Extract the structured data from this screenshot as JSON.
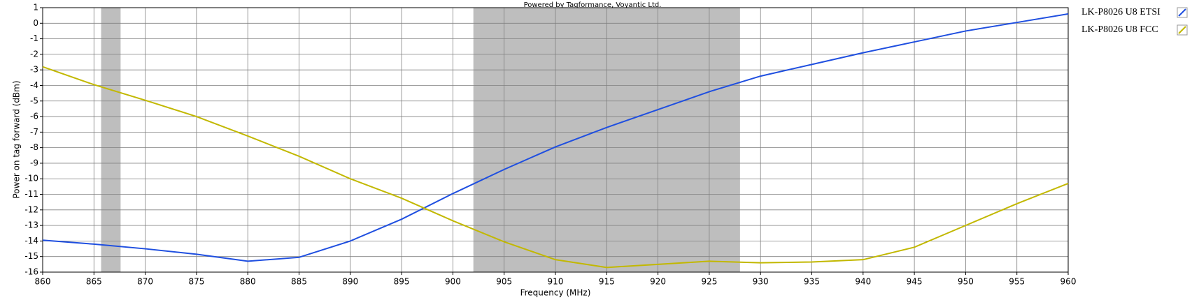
{
  "chart_data": {
    "type": "line",
    "title": "Powered by Tagformance, Voyantic Ltd.",
    "x_label": "Frequency (MHz)",
    "y_label": "Power on tag forward (dBm)",
    "x": [
      860,
      865,
      870,
      875,
      880,
      885,
      890,
      895,
      900,
      905,
      910,
      915,
      920,
      925,
      930,
      935,
      940,
      945,
      950,
      955,
      960
    ],
    "series": [
      {
        "name": "LK-P8026 U8 ETSI",
        "color": "#1f4fe0",
        "values": [
          -13.95,
          -14.2,
          -14.5,
          -14.85,
          -15.3,
          -15.05,
          -14,
          -12.6,
          -10.95,
          -9.4,
          -7.95,
          -6.7,
          -5.55,
          -4.4,
          -3.4,
          -2.65,
          -1.9,
          -1.2,
          -0.5,
          0.05,
          0.6
        ]
      },
      {
        "name": "LK-P8026 U8 FCC",
        "color": "#c2b800",
        "values": [
          -2.8,
          -3.95,
          -4.95,
          -6,
          -7.25,
          -8.55,
          -10,
          -11.25,
          -12.7,
          -14.05,
          -15.2,
          -15.7,
          -15.5,
          -15.3,
          -15.4,
          -15.35,
          -15.2,
          -14.4,
          -13,
          -11.6,
          -10.3
        ]
      }
    ],
    "bands": [
      [
        865.7,
        867.6
      ],
      [
        902,
        928
      ]
    ],
    "band_color": "#bebebe",
    "xlim": [
      860,
      960
    ],
    "ylim": [
      -16,
      1
    ],
    "xticks": [
      860,
      865,
      870,
      875,
      880,
      885,
      890,
      895,
      900,
      905,
      910,
      915,
      920,
      925,
      930,
      935,
      940,
      945,
      950,
      955,
      960
    ],
    "yticks": [
      -16,
      -15,
      -14,
      -13,
      -12,
      -11,
      -10,
      -9,
      -8,
      -7,
      -6,
      -5,
      -4,
      -3,
      -2,
      -1,
      0,
      1
    ],
    "grid": true
  }
}
